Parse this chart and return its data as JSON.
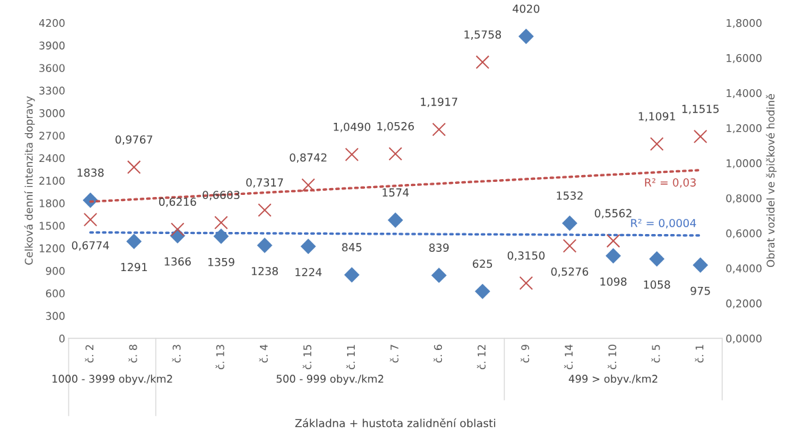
{
  "chart_data": {
    "type": "scatter",
    "xlabel": "Základna + hustota zalidnění oblasti",
    "ylabel": "Celková denní intenzita dopravy",
    "y2label": "Obrat vozidel ve špičkové hodině",
    "categories": [
      "č. 2",
      "č. 8",
      "č. 3",
      "č. 13",
      "č. 4",
      "č. 15",
      "č. 11",
      "č. 7",
      "č. 6",
      "č. 12",
      "č. 9",
      "č. 14",
      "č. 10",
      "č. 5",
      "č. 1"
    ],
    "series": [
      {
        "marker": "diamond",
        "color": "#4f81bd",
        "values": [
          1838,
          1291,
          1366,
          1359,
          1238,
          1224,
          845,
          1574,
          839,
          625,
          4020,
          1532,
          1098,
          1058,
          975
        ],
        "value_labels": [
          "1838",
          "1291",
          "1366",
          "1359",
          "1238",
          "1224",
          "845",
          "1574",
          "839",
          "625",
          "4020",
          "1532",
          "1098",
          "1058",
          "975"
        ]
      },
      {
        "marker": "cross",
        "axis": "y2",
        "color": "#c0504d",
        "values": [
          0.6774,
          0.9767,
          0.6216,
          0.6603,
          0.7317,
          0.8742,
          1.049,
          1.0526,
          1.1917,
          1.5758,
          0.315,
          0.5276,
          0.5562,
          1.1091,
          1.1515
        ],
        "value_labels": [
          "0,6774",
          "0,9767",
          "0,6216",
          "0,6603",
          "0,7317",
          "0,8742",
          "1,0490",
          "1,0526",
          "1,1917",
          "1,5758",
          "0,3150",
          "0,5276",
          "0,5562",
          "1,1091",
          "1,1515"
        ]
      },
      {
        "type": "line",
        "line_style": "dotted",
        "color": "#4472c4",
        "x": [
          "č. 2",
          "č. 1"
        ],
        "values": [
          1410,
          1370
        ]
      },
      {
        "type": "line",
        "line_style": "dotted",
        "axis": "y2",
        "color": "#c0504d",
        "x": [
          "č. 2",
          "č. 1"
        ],
        "values": [
          0.78,
          0.96
        ]
      }
    ],
    "ylim": [
      0,
      4200
    ],
    "yticks": [
      0,
      300,
      600,
      900,
      1200,
      1500,
      1800,
      2100,
      2400,
      2700,
      3000,
      3300,
      3600,
      3900,
      4200
    ],
    "y2lim": [
      0,
      1.8
    ],
    "y2ticks": [
      {
        "value": 0,
        "label": "0,0000"
      },
      {
        "value": 0.2,
        "label": "0,2000"
      },
      {
        "value": 0.4,
        "label": "0,4000"
      },
      {
        "value": 0.6,
        "label": "0,6000"
      },
      {
        "value": 0.8,
        "label": "0,8000"
      },
      {
        "value": 1.0,
        "label": "1,0000"
      },
      {
        "value": 1.2,
        "label": "1,2000"
      },
      {
        "value": 1.4,
        "label": "1,4000"
      },
      {
        "value": 1.6,
        "label": "1,6000"
      },
      {
        "value": 1.8,
        "label": "1,8000"
      }
    ],
    "annotations": [
      "R² = 0,0004",
      "R² = 0,03",
      "1000 - 3999 obyv./km2",
      "500 - 999 obyv./km2",
      "499 > obyv./km2"
    ],
    "grid": false
  }
}
